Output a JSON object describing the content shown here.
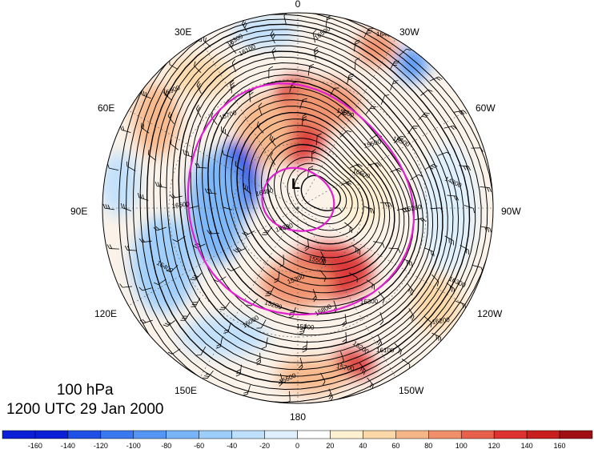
{
  "caption": {
    "level": "100 hPa",
    "time": "1200 UTC 29 Jan 2000"
  },
  "low_marker": "L",
  "longitude_labels": [
    "0",
    "30W",
    "60W",
    "90W",
    "120W",
    "150W",
    "180",
    "150E",
    "120E",
    "90E",
    "60E",
    "30E"
  ],
  "contour_labels": [
    "16500",
    "16400",
    "16300",
    "16200",
    "16100",
    "16000",
    "15900",
    "15800",
    "15700",
    "15600",
    "15500",
    "15300",
    "15280",
    "14800"
  ],
  "colorbar": {
    "ticks": [
      "-160",
      "-140",
      "-120",
      "-100",
      "-80",
      "-60",
      "-40",
      "-20",
      "0",
      "20",
      "40",
      "60",
      "80",
      "100",
      "120",
      "140",
      "160"
    ],
    "colors": [
      "#0a1fd6",
      "#1f50e6",
      "#3a78f0",
      "#5596f5",
      "#78b4f8",
      "#9ccdfb",
      "#bfe0fc",
      "#def0fe",
      "#ffffff",
      "#fff0d2",
      "#fcd8a8",
      "#f7b687",
      "#f0906a",
      "#e8604c",
      "#dc3232",
      "#c81e1e",
      "#a00f14"
    ]
  },
  "colors": {
    "contour": "#000000",
    "polar_vortex_edge": "#e020d0",
    "wind_barb": "#000000"
  }
}
